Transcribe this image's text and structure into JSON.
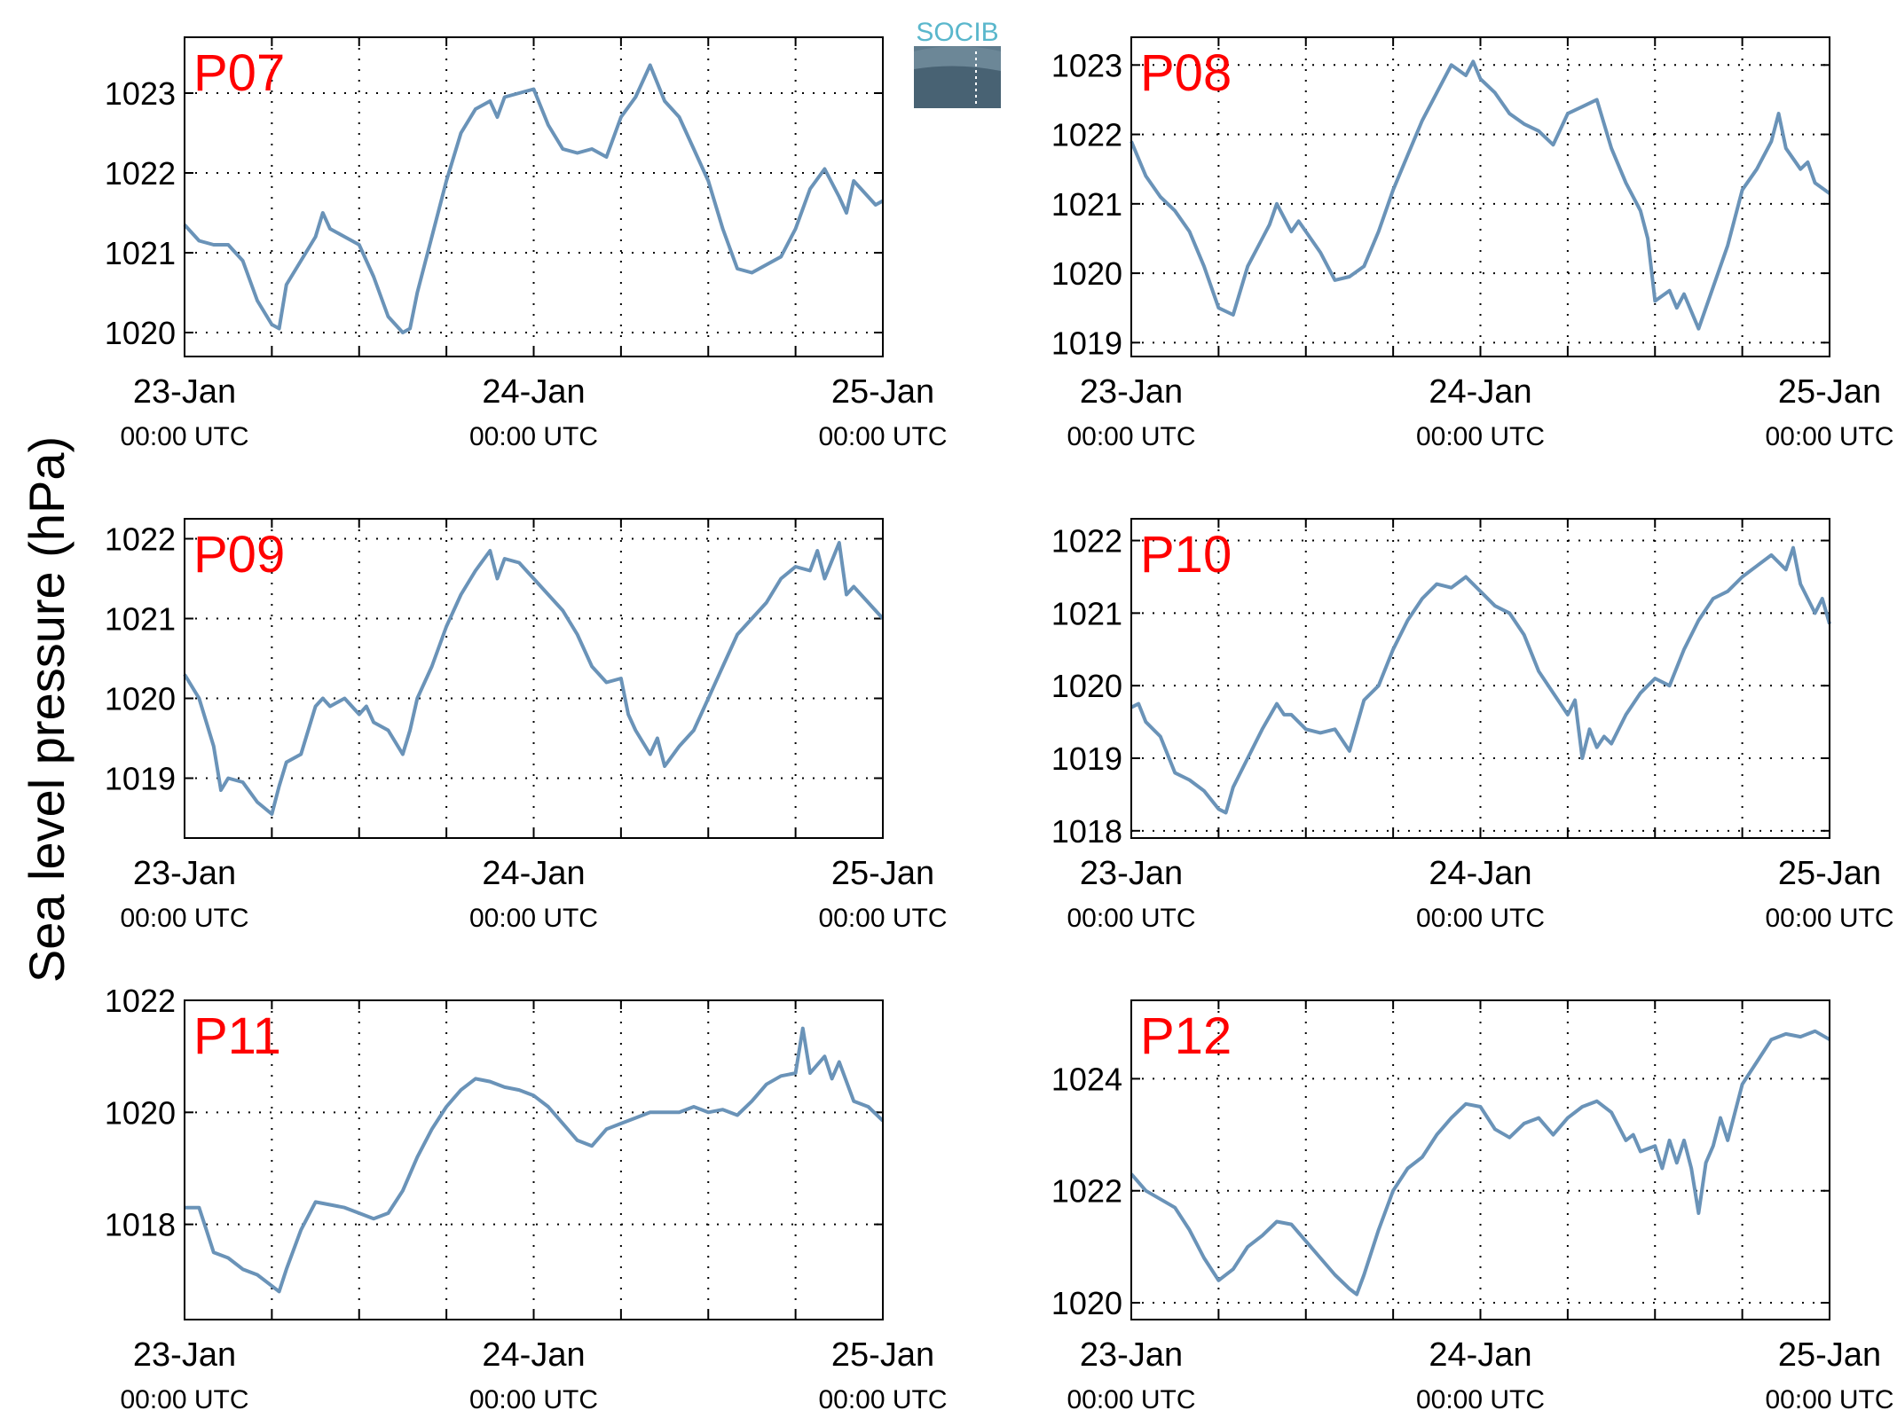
{
  "figure": {
    "ylabel": "Sea level pressure (hPa)",
    "logo_text": "SOCIB",
    "line_color": "#6a93b8",
    "label_color": "#ff0000"
  },
  "chart_data": [
    {
      "type": "line",
      "title": "P07",
      "x_ticks": [
        "23-Jan",
        "24-Jan",
        "25-Jan"
      ],
      "x_tick_sub": "00:00 UTC",
      "x_range_hours": [
        0,
        48
      ],
      "ylim": [
        1019.7,
        1023.7
      ],
      "yticks": [
        1020,
        1021,
        1022,
        1023
      ],
      "grid": true,
      "x": [
        0,
        1,
        2,
        3,
        4,
        5,
        6,
        6.5,
        7,
        8,
        9,
        9.5,
        10,
        11,
        12,
        13,
        14,
        15,
        15.5,
        16,
        17,
        18,
        19,
        20,
        21,
        21.5,
        22,
        23,
        24,
        25,
        26,
        27,
        28,
        29,
        30,
        31,
        32,
        33,
        33.5,
        34,
        35,
        36,
        37,
        38,
        39,
        40,
        41,
        42,
        43,
        44,
        45,
        45.5,
        46,
        47,
        47.5,
        48
      ],
      "y": [
        1021.35,
        1021.15,
        1021.1,
        1021.1,
        1020.9,
        1020.4,
        1020.1,
        1020.05,
        1020.6,
        1020.9,
        1021.2,
        1021.5,
        1021.3,
        1021.2,
        1021.1,
        1020.7,
        1020.2,
        1020.0,
        1020.05,
        1020.5,
        1021.2,
        1021.9,
        1022.5,
        1022.8,
        1022.9,
        1022.7,
        1022.95,
        1023.0,
        1023.05,
        1022.6,
        1022.3,
        1022.25,
        1022.3,
        1022.2,
        1022.7,
        1022.95,
        1023.35,
        1022.9,
        1022.8,
        1022.7,
        1022.3,
        1021.9,
        1021.3,
        1020.8,
        1020.75,
        1020.85,
        1020.95,
        1021.3,
        1021.8,
        1022.05,
        1021.7,
        1021.5,
        1021.9,
        1021.7,
        1021.6,
        1021.65
      ]
    },
    {
      "type": "line",
      "title": "P08",
      "x_ticks": [
        "23-Jan",
        "24-Jan",
        "25-Jan"
      ],
      "x_tick_sub": "00:00 UTC",
      "x_range_hours": [
        0,
        48
      ],
      "ylim": [
        1018.8,
        1023.4
      ],
      "yticks": [
        1019,
        1020,
        1021,
        1022,
        1023
      ],
      "grid": true,
      "x": [
        0,
        1,
        2,
        3,
        4,
        5,
        6,
        7,
        8,
        9,
        9.5,
        10,
        11,
        11.5,
        12,
        13,
        14,
        15,
        16,
        17,
        18,
        19,
        20,
        21,
        22,
        23,
        23.5,
        24,
        25,
        26,
        27,
        28,
        29,
        30,
        31,
        32,
        33,
        34,
        35,
        35.5,
        36,
        37,
        37.5,
        38,
        39,
        40,
        41,
        42,
        43,
        44,
        44.5,
        45,
        46,
        46.5,
        47,
        48
      ],
      "y": [
        1021.9,
        1021.4,
        1021.1,
        1020.9,
        1020.6,
        1020.1,
        1019.5,
        1019.4,
        1020.1,
        1020.5,
        1020.7,
        1021.0,
        1020.6,
        1020.75,
        1020.6,
        1020.3,
        1019.9,
        1019.95,
        1020.1,
        1020.6,
        1021.2,
        1021.7,
        1022.2,
        1022.6,
        1023.0,
        1022.85,
        1023.05,
        1022.8,
        1022.6,
        1022.3,
        1022.15,
        1022.05,
        1021.85,
        1022.3,
        1022.4,
        1022.5,
        1021.8,
        1021.3,
        1020.9,
        1020.5,
        1019.6,
        1019.75,
        1019.5,
        1019.7,
        1019.2,
        1019.8,
        1020.4,
        1021.2,
        1021.5,
        1021.9,
        1022.3,
        1021.8,
        1021.5,
        1021.6,
        1021.3,
        1021.15
      ]
    },
    {
      "type": "line",
      "title": "P09",
      "x_ticks": [
        "23-Jan",
        "24-Jan",
        "25-Jan"
      ],
      "x_tick_sub": "00:00 UTC",
      "x_range_hours": [
        0,
        48
      ],
      "ylim": [
        1018.25,
        1022.25
      ],
      "yticks": [
        1019,
        1020,
        1021,
        1022
      ],
      "grid": true,
      "x": [
        0,
        1,
        1.5,
        2,
        2.5,
        3,
        4,
        5,
        6,
        6.5,
        7,
        8,
        9,
        9.5,
        10,
        11,
        12,
        12.5,
        13,
        14,
        15,
        15.5,
        16,
        17,
        18,
        19,
        20,
        21,
        21.5,
        22,
        23,
        23.5,
        24,
        25,
        26,
        27,
        28,
        29,
        30,
        30.5,
        31,
        32,
        32.5,
        33,
        34,
        34.5,
        35,
        36,
        37,
        38,
        39,
        40,
        41,
        42,
        43,
        43.5,
        44,
        45,
        45.5,
        46,
        47,
        48
      ],
      "y": [
        1020.3,
        1020.0,
        1019.7,
        1019.4,
        1018.85,
        1019.0,
        1018.95,
        1018.7,
        1018.55,
        1018.9,
        1019.2,
        1019.3,
        1019.9,
        1020.0,
        1019.9,
        1020.0,
        1019.8,
        1019.9,
        1019.7,
        1019.6,
        1019.3,
        1019.6,
        1020.0,
        1020.4,
        1020.9,
        1021.3,
        1021.6,
        1021.85,
        1021.5,
        1021.75,
        1021.7,
        1021.6,
        1021.5,
        1021.3,
        1021.1,
        1020.8,
        1020.4,
        1020.2,
        1020.25,
        1019.8,
        1019.6,
        1019.3,
        1019.5,
        1019.15,
        1019.4,
        1019.5,
        1019.6,
        1020.0,
        1020.4,
        1020.8,
        1021.0,
        1021.2,
        1021.5,
        1021.65,
        1021.6,
        1021.85,
        1021.5,
        1021.95,
        1021.3,
        1021.4,
        1021.2,
        1021.0
      ]
    },
    {
      "type": "line",
      "title": "P10",
      "x_ticks": [
        "23-Jan",
        "24-Jan",
        "25-Jan"
      ],
      "x_tick_sub": "00:00 UTC",
      "x_range_hours": [
        0,
        48
      ],
      "ylim": [
        1017.9,
        1022.3
      ],
      "yticks": [
        1018,
        1019,
        1020,
        1021,
        1022
      ],
      "grid": true,
      "x": [
        0,
        0.5,
        1,
        2,
        3,
        4,
        5,
        6,
        6.5,
        7,
        8,
        9,
        10,
        10.5,
        11,
        12,
        13,
        14,
        15,
        15.5,
        16,
        17,
        18,
        19,
        20,
        21,
        22,
        23,
        24,
        25,
        26,
        27,
        28,
        29,
        30,
        30.5,
        31,
        31.5,
        32,
        32.5,
        33,
        34,
        35,
        36,
        37,
        38,
        39,
        40,
        41,
        42,
        43,
        44,
        45,
        45.5,
        46,
        47,
        47.5,
        48
      ],
      "y": [
        1019.7,
        1019.75,
        1019.5,
        1019.3,
        1018.8,
        1018.7,
        1018.55,
        1018.3,
        1018.25,
        1018.6,
        1019.0,
        1019.4,
        1019.75,
        1019.6,
        1019.6,
        1019.4,
        1019.35,
        1019.4,
        1019.1,
        1019.45,
        1019.8,
        1020.0,
        1020.5,
        1020.9,
        1021.2,
        1021.4,
        1021.35,
        1021.5,
        1021.3,
        1021.1,
        1021.0,
        1020.7,
        1020.2,
        1019.9,
        1019.6,
        1019.8,
        1019.0,
        1019.4,
        1019.15,
        1019.3,
        1019.2,
        1019.6,
        1019.9,
        1020.1,
        1020.0,
        1020.5,
        1020.9,
        1021.2,
        1021.3,
        1021.5,
        1021.65,
        1021.8,
        1021.6,
        1021.9,
        1021.4,
        1021.0,
        1021.2,
        1020.85
      ]
    },
    {
      "type": "line",
      "title": "P11",
      "x_ticks": [
        "23-Jan",
        "24-Jan",
        "25-Jan"
      ],
      "x_tick_sub": "00:00 UTC",
      "x_range_hours": [
        0,
        48
      ],
      "ylim": [
        1016.3,
        1022.0
      ],
      "yticks": [
        1018,
        1020,
        1022
      ],
      "grid": true,
      "x": [
        0,
        1,
        1.5,
        2,
        3,
        4,
        5,
        6,
        6.5,
        7,
        8,
        9,
        10,
        11,
        12,
        13,
        14,
        15,
        16,
        17,
        18,
        19,
        20,
        21,
        22,
        23,
        24,
        25,
        26,
        27,
        28,
        29,
        30,
        31,
        32,
        33,
        34,
        35,
        36,
        37,
        38,
        39,
        40,
        41,
        42,
        42.5,
        43,
        44,
        44.5,
        45,
        46,
        47,
        48
      ],
      "y": [
        1018.3,
        1018.3,
        1017.9,
        1017.5,
        1017.4,
        1017.2,
        1017.1,
        1016.9,
        1016.8,
        1017.2,
        1017.9,
        1018.4,
        1018.35,
        1018.3,
        1018.2,
        1018.1,
        1018.2,
        1018.6,
        1019.2,
        1019.7,
        1020.1,
        1020.4,
        1020.6,
        1020.55,
        1020.45,
        1020.4,
        1020.3,
        1020.1,
        1019.8,
        1019.5,
        1019.4,
        1019.7,
        1019.8,
        1019.9,
        1020.0,
        1020.0,
        1020.0,
        1020.1,
        1020.0,
        1020.05,
        1019.95,
        1020.2,
        1020.5,
        1020.65,
        1020.7,
        1021.5,
        1020.7,
        1021.0,
        1020.6,
        1020.9,
        1020.2,
        1020.1,
        1019.85
      ]
    },
    {
      "type": "line",
      "title": "P12",
      "x_ticks": [
        "23-Jan",
        "24-Jan",
        "25-Jan"
      ],
      "x_tick_sub": "00:00 UTC",
      "x_range_hours": [
        0,
        48
      ],
      "ylim": [
        1019.7,
        1025.4
      ],
      "yticks": [
        1020,
        1022,
        1024
      ],
      "grid": true,
      "x": [
        0,
        1,
        2,
        3,
        4,
        5,
        6,
        7,
        8,
        9,
        10,
        11,
        12,
        13,
        14,
        15,
        15.5,
        16,
        17,
        18,
        19,
        20,
        21,
        22,
        23,
        24,
        25,
        26,
        27,
        28,
        29,
        30,
        31,
        32,
        33,
        34,
        34.5,
        35,
        36,
        36.5,
        37,
        37.5,
        38,
        38.5,
        39,
        39.5,
        40,
        40.5,
        41,
        42,
        43,
        44,
        45,
        46,
        47,
        48
      ],
      "y": [
        1022.3,
        1022.0,
        1021.85,
        1021.7,
        1021.3,
        1020.8,
        1020.4,
        1020.6,
        1021.0,
        1021.2,
        1021.45,
        1021.4,
        1021.1,
        1020.8,
        1020.5,
        1020.25,
        1020.15,
        1020.5,
        1021.3,
        1022.0,
        1022.4,
        1022.6,
        1023.0,
        1023.3,
        1023.55,
        1023.5,
        1023.1,
        1022.95,
        1023.2,
        1023.3,
        1023.0,
        1023.3,
        1023.5,
        1023.6,
        1023.4,
        1022.9,
        1023.0,
        1022.7,
        1022.8,
        1022.4,
        1022.9,
        1022.5,
        1022.9,
        1022.4,
        1021.6,
        1022.5,
        1022.8,
        1023.3,
        1022.9,
        1023.9,
        1024.3,
        1024.7,
        1024.8,
        1024.75,
        1024.85,
        1024.7
      ]
    }
  ]
}
